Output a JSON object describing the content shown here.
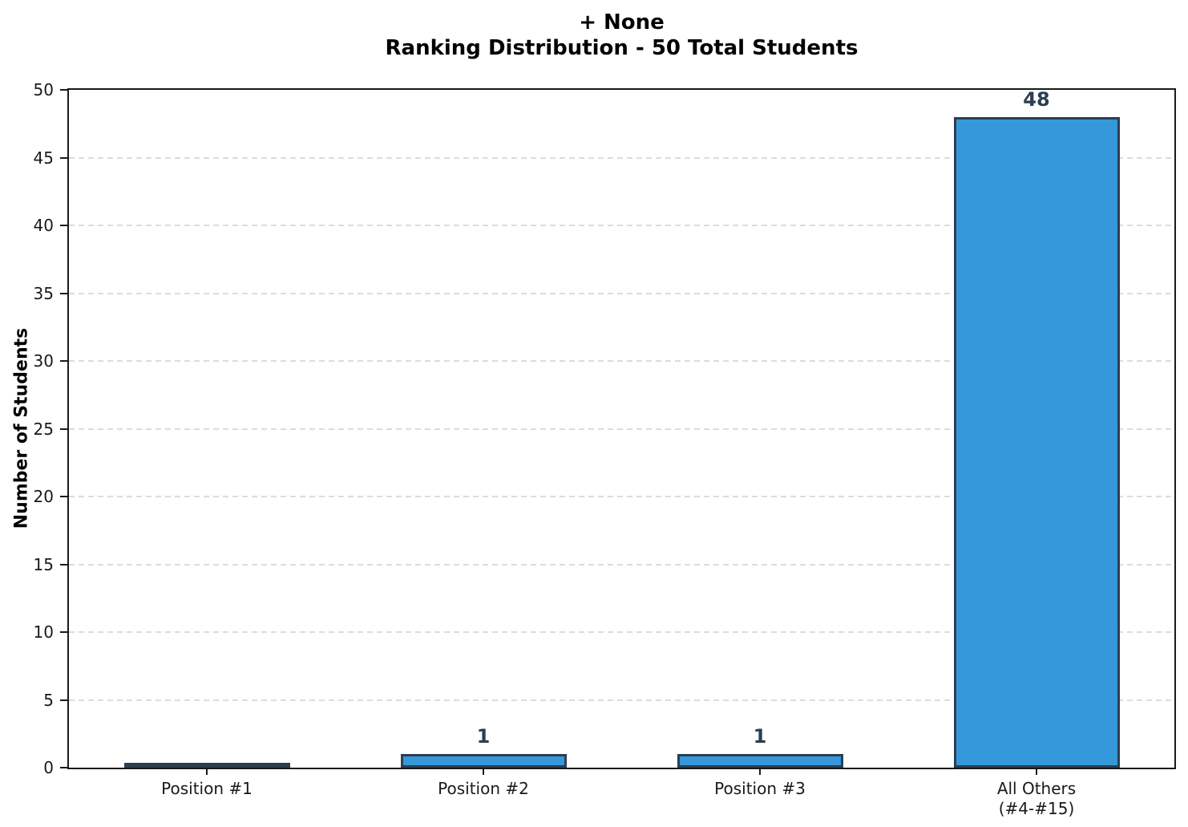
{
  "title_text": "+ None\nRanking Distribution - 50 Total Students",
  "chart_data": {
    "type": "bar",
    "title": "+ None",
    "subtitle": "Ranking Distribution - 50 Total Students",
    "categories": [
      "Position #1",
      "Position #2",
      "Position #3",
      "All Others\n(#4-#15)"
    ],
    "values": [
      0,
      1,
      1,
      48
    ],
    "bar_labels": [
      "",
      "1",
      "1",
      "48"
    ],
    "xlabel": "",
    "ylabel": "Number of Students",
    "ylim": [
      0,
      50
    ],
    "ytick_step": 5,
    "yticks": [
      0,
      5,
      10,
      15,
      20,
      25,
      30,
      35,
      40,
      45,
      50
    ],
    "grid": "horizontal-dashed",
    "legend": "none",
    "colors": {
      "bar_fill": "#3498db",
      "bar_edge": "#2c3e50",
      "value_label": "#2c3e50",
      "grid_line": "#dcdcdc",
      "axis": "#1a1a1a",
      "background": "#ffffff"
    }
  }
}
